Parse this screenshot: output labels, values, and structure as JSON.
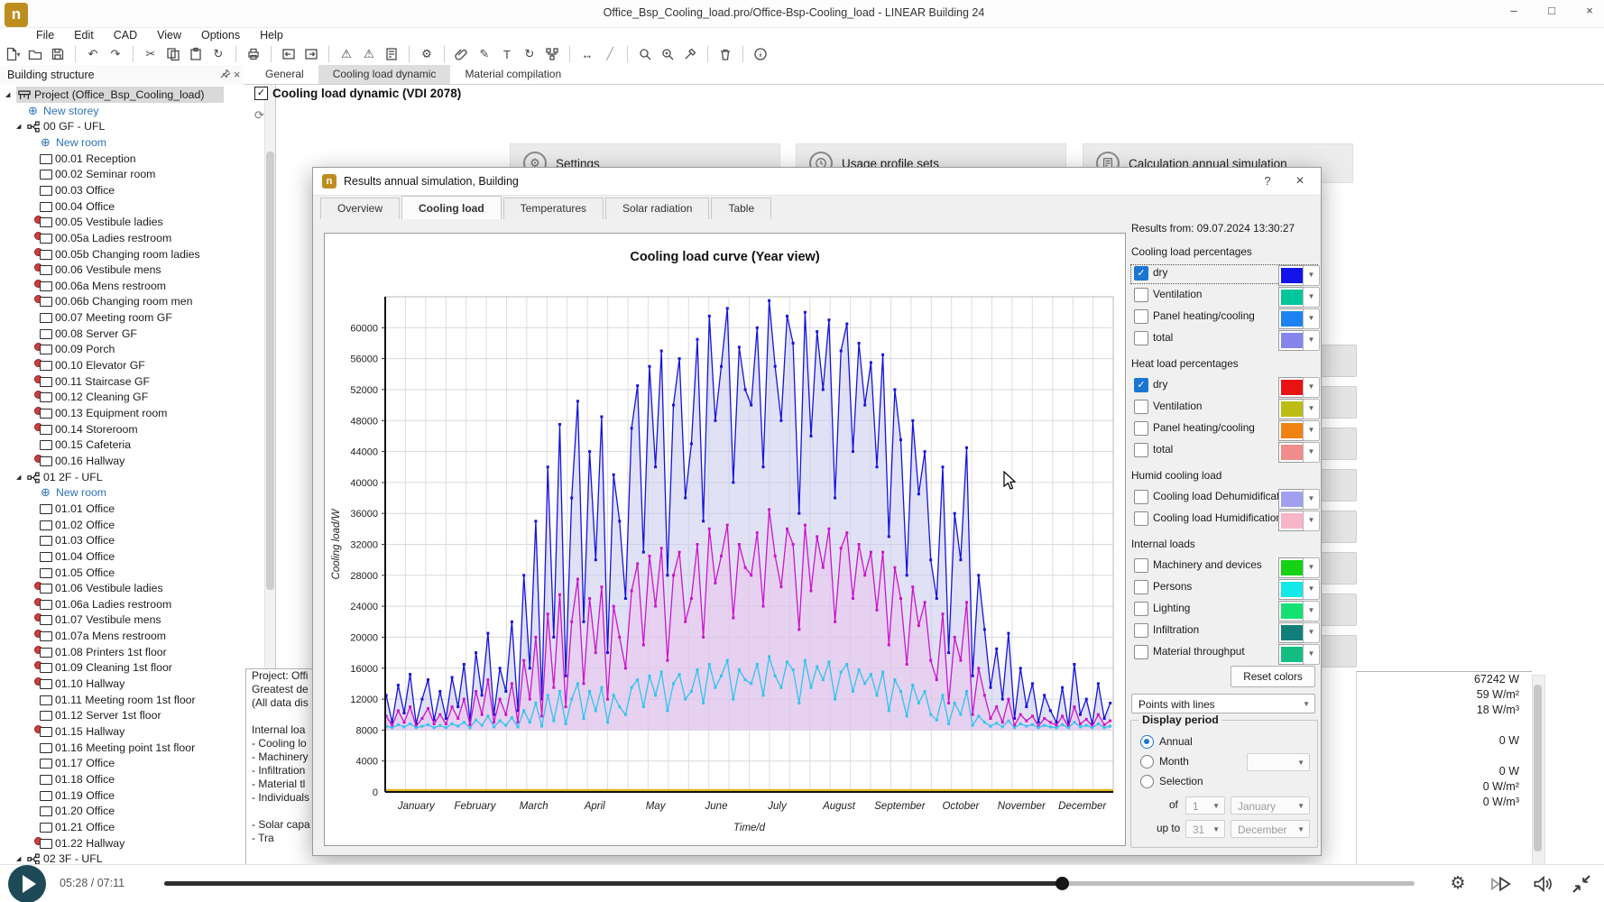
{
  "window": {
    "title": "Office_Bsp_Cooling_load.pro/Office-Bsp-Cooling_load - LINEAR Building 24",
    "controls": [
      "minimize",
      "maximize",
      "close"
    ],
    "logo_letter": "n"
  },
  "menu": [
    "File",
    "Edit",
    "CAD",
    "View",
    "Options",
    "Help"
  ],
  "toolbar_groups": [
    [
      "new-document",
      "open-project",
      "save"
    ],
    [
      "undo",
      "redo"
    ],
    [
      "cut",
      "copy",
      "paste",
      "find-replace"
    ],
    [
      "print"
    ],
    [
      "dock-left",
      "dock-right"
    ],
    [
      "warning-check",
      "warning-check-2",
      "calculation-check"
    ],
    [
      "settings-gear"
    ],
    [
      "attach-link",
      "edit-pencil",
      "text-tool",
      "refresh-sync",
      "structure-tree"
    ],
    [
      "measure-width",
      "measure-diagonal"
    ],
    [
      "zoom-search",
      "zoom-plus",
      "color-picker"
    ],
    [
      "delete-trash"
    ],
    [
      "info"
    ]
  ],
  "main_tabs": [
    {
      "label": "General",
      "active": false
    },
    {
      "label": "Cooling load dynamic",
      "active": true
    },
    {
      "label": "Material compilation",
      "active": false
    }
  ],
  "building_panel": {
    "title": "Building structure",
    "tree": [
      {
        "t": "Project (Office_Bsp_Cooling_load)",
        "k": "project"
      },
      {
        "t": "New storey",
        "k": "link1"
      },
      {
        "t": "00 GF - UFL",
        "k": "storey"
      },
      {
        "t": "New room",
        "k": "link2"
      },
      {
        "t": "00.01 Reception",
        "k": "room"
      },
      {
        "t": "00.02 Seminar room",
        "k": "room"
      },
      {
        "t": "00.03 Office",
        "k": "room"
      },
      {
        "t": "00.04 Office",
        "k": "room"
      },
      {
        "t": "00.05 Vestibule ladies",
        "k": "roomb"
      },
      {
        "t": "00.05a Ladies restroom",
        "k": "roomb"
      },
      {
        "t": "00.05b Changing room ladies",
        "k": "roomb"
      },
      {
        "t": "00.06 Vestibule mens",
        "k": "roomb"
      },
      {
        "t": "00.06a Mens restroom",
        "k": "roomb"
      },
      {
        "t": "00.06b Changing room men",
        "k": "roomb"
      },
      {
        "t": "00.07 Meeting room GF",
        "k": "room"
      },
      {
        "t": "00.08 Server GF",
        "k": "room"
      },
      {
        "t": "00.09 Porch",
        "k": "roomb"
      },
      {
        "t": "00.10 Elevator GF",
        "k": "roomb"
      },
      {
        "t": "00.11 Staircase GF",
        "k": "roomb"
      },
      {
        "t": "00.12 Cleaning GF",
        "k": "roomb"
      },
      {
        "t": "00.13 Equipment room",
        "k": "roomb"
      },
      {
        "t": "00.14 Storeroom",
        "k": "roomb"
      },
      {
        "t": "00.15 Cafeteria",
        "k": "room"
      },
      {
        "t": "00.16 Hallway",
        "k": "roomb"
      },
      {
        "t": "01 2F - UFL",
        "k": "storey"
      },
      {
        "t": "New room",
        "k": "link2"
      },
      {
        "t": "01.01 Office",
        "k": "room"
      },
      {
        "t": "01.02 Office",
        "k": "room"
      },
      {
        "t": "01.03 Office",
        "k": "room"
      },
      {
        "t": "01.04 Office",
        "k": "room"
      },
      {
        "t": "01.05 Office",
        "k": "room"
      },
      {
        "t": "01.06 Vestibule ladies",
        "k": "roomb"
      },
      {
        "t": "01.06a Ladies restroom",
        "k": "roomb"
      },
      {
        "t": "01.07 Vestibule mens",
        "k": "roomb"
      },
      {
        "t": "01.07a Mens restroom",
        "k": "roomb"
      },
      {
        "t": "01.08 Printers 1st floor",
        "k": "roomb"
      },
      {
        "t": "01.09 Cleaning 1st floor",
        "k": "roomb"
      },
      {
        "t": "01.10 Hallway",
        "k": "roomb"
      },
      {
        "t": "01.11 Meeting room 1st floor",
        "k": "room"
      },
      {
        "t": "01.12 Server 1st floor",
        "k": "room"
      },
      {
        "t": "01.15 Hallway",
        "k": "roomb"
      },
      {
        "t": "01.16 Meeting point 1st floor",
        "k": "room"
      },
      {
        "t": "01.17 Office",
        "k": "room"
      },
      {
        "t": "01.18 Office",
        "k": "room"
      },
      {
        "t": "01.19 Office",
        "k": "room"
      },
      {
        "t": "01.20 Office",
        "k": "room"
      },
      {
        "t": "01.21 Office",
        "k": "room"
      },
      {
        "t": "01.22 Hallway",
        "k": "roomb"
      },
      {
        "t": "02 3F - UFL",
        "k": "storey"
      }
    ]
  },
  "content": {
    "header_label": "Cooling load dynamic (VDI 2078)",
    "header_checked": true,
    "cards": [
      {
        "label": "Settings",
        "icon": "gear"
      },
      {
        "label": "Usage profile sets",
        "icon": "clock"
      },
      {
        "label": "Calculation annual simulation",
        "icon": "calc"
      }
    ],
    "left_fragment_lines": [
      "Project: Offi",
      "Greatest de",
      "(All data dis",
      "",
      "Internal loa",
      "- Cooling lo",
      "- Machinery",
      "- Infiltration",
      "- Material tl",
      "- Individuals",
      "",
      "- Solar capa",
      "- Tra"
    ],
    "right_values_lines": [
      "67242 W",
      "59 W/m²",
      "18 W/m³",
      "",
      "0 W",
      "",
      "0 W",
      "0 W/m²",
      "0 W/m³"
    ]
  },
  "dialog": {
    "title": "Results annual simulation, Building",
    "buttons": {
      "help": "?",
      "close": "×"
    },
    "tabs": [
      {
        "label": "Overview",
        "active": false
      },
      {
        "label": "Cooling load",
        "active": true
      },
      {
        "label": "Temperatures",
        "active": false
      },
      {
        "label": "Solar radiation",
        "active": false
      },
      {
        "label": "Table",
        "active": false
      }
    ],
    "results_from": "Results from: 09.07.2024 13:30:27",
    "legend_groups": [
      {
        "title": "Cooling load percentages",
        "items": [
          {
            "label": "dry",
            "checked": true,
            "focused": true,
            "color": "#1414e8"
          },
          {
            "label": "Ventilation",
            "checked": false,
            "color": "#00c79b"
          },
          {
            "label": "Panel heating/cooling",
            "checked": false,
            "color": "#1e82f0"
          },
          {
            "label": "total",
            "checked": false,
            "color": "#8585ec"
          }
        ]
      },
      {
        "title": "Heat load percentages",
        "items": [
          {
            "label": "dry",
            "checked": true,
            "color": "#e81414"
          },
          {
            "label": "Ventilation",
            "checked": false,
            "color": "#bcbc14"
          },
          {
            "label": "Panel heating/cooling",
            "checked": false,
            "color": "#f08214"
          },
          {
            "label": "total",
            "checked": false,
            "color": "#f08c8c"
          }
        ]
      },
      {
        "title": "Humid cooling load",
        "items": [
          {
            "label": "Cooling load Dehumidification",
            "checked": false,
            "color": "#a0a0ee"
          },
          {
            "label": "Cooling load Humidification",
            "checked": false,
            "color": "#f8b4c8"
          }
        ]
      },
      {
        "title": "Internal loads",
        "items": [
          {
            "label": "Machinery and devices",
            "checked": false,
            "color": "#14d214"
          },
          {
            "label": "Persons",
            "checked": false,
            "color": "#14e8e8"
          },
          {
            "label": "Lighting",
            "checked": false,
            "color": "#14e173"
          },
          {
            "label": "Infiltration",
            "checked": false,
            "color": "#137f7b"
          },
          {
            "label": "Material throughput",
            "checked": false,
            "color": "#14be82"
          }
        ]
      }
    ],
    "reset_label": "Reset colors",
    "style_value": "Points with lines",
    "display": {
      "title": "Display period",
      "annual": "Annual",
      "month": "Month",
      "selection": "Selection",
      "selected": "Annual",
      "of_label": "of",
      "of_day": "1",
      "of_month": "January",
      "upto_label": "up to",
      "upto_day": "31",
      "upto_month": "December"
    }
  },
  "chart_data": {
    "type": "line",
    "title": "Cooling load curve (Year view)",
    "xlabel": "Time/d",
    "ylabel": "Cooling load/W",
    "ylim": [
      0,
      64000
    ],
    "ytick_step": 4000,
    "grid": true,
    "legend": "none",
    "categories": [
      "January",
      "February",
      "March",
      "April",
      "May",
      "June",
      "July",
      "August",
      "September",
      "October",
      "November",
      "December"
    ],
    "month_day_bounds": [
      0,
      31,
      59,
      90,
      120,
      151,
      181,
      212,
      243,
      273,
      304,
      334,
      365
    ],
    "x_start": 1,
    "x_step": 3,
    "fill_baseline": 8000,
    "series": [
      {
        "name": "cooling-load-dry",
        "color": "#1414dc",
        "fill": "rgba(200,200,238,0.55)",
        "values": [
          12500,
          9000,
          13800,
          10200,
          15200,
          8800,
          12000,
          14500,
          9300,
          13000,
          9500,
          14800,
          11000,
          16500,
          9200,
          18000,
          12500,
          20500,
          10000,
          16000,
          13000,
          22000,
          10500,
          28000,
          16000,
          35000,
          12000,
          42000,
          20000,
          47500,
          15000,
          38000,
          50500,
          22000,
          44000,
          30000,
          48500,
          18000,
          41000,
          35000,
          25000,
          47000,
          52500,
          31000,
          55000,
          42000,
          57000,
          28000,
          50000,
          56000,
          38000,
          45000,
          58500,
          35000,
          61500,
          48000,
          55000,
          62500,
          40000,
          57500,
          52000,
          50000,
          60000,
          42000,
          63500,
          55000,
          48000,
          61500,
          58000,
          36000,
          62000,
          46000,
          59500,
          52000,
          61000,
          38000,
          57000,
          60500,
          44000,
          58000,
          50000,
          55500,
          42000,
          56500,
          33000,
          52000,
          45500,
          28000,
          48000,
          38500,
          44000,
          30000,
          25000,
          42000,
          18000,
          36000,
          30000,
          44500,
          15000,
          28000,
          21000,
          13500,
          18500,
          12000,
          20500,
          9500,
          16000,
          11000,
          14000,
          9000,
          12500,
          10500,
          9000,
          13500,
          8500,
          16500,
          10000,
          12000,
          8800,
          14000,
          9500,
          11500
        ]
      },
      {
        "name": "cooling-load-magenta",
        "color": "#cc14cc",
        "fill": "rgba(238,190,232,0.45)",
        "values": [
          9800,
          8600,
          10500,
          9000,
          11000,
          8500,
          9500,
          10800,
          8800,
          10000,
          8800,
          11000,
          9500,
          12000,
          8700,
          13000,
          10000,
          14500,
          9000,
          12000,
          10000,
          14000,
          9000,
          17000,
          12000,
          20000,
          9800,
          23000,
          13500,
          25500,
          11000,
          22000,
          27500,
          14000,
          25000,
          18000,
          26500,
          12000,
          24000,
          20000,
          16000,
          26000,
          29500,
          19000,
          30500,
          24000,
          31500,
          17000,
          28000,
          31000,
          22000,
          25000,
          32000,
          20000,
          34000,
          27000,
          30500,
          34500,
          22500,
          32000,
          29000,
          28000,
          33500,
          24000,
          36500,
          30500,
          26500,
          34000,
          32000,
          21000,
          34500,
          26000,
          33000,
          29000,
          34000,
          22000,
          31500,
          33500,
          25000,
          32000,
          28000,
          31000,
          23500,
          31000,
          19000,
          29000,
          25000,
          16500,
          26500,
          21500,
          24500,
          17000,
          14500,
          23000,
          11500,
          20000,
          17000,
          24500,
          10000,
          16000,
          12500,
          9500,
          11000,
          9000,
          12000,
          8600,
          10000,
          9200,
          9800,
          8500,
          9500,
          9000,
          8600,
          9800,
          8400,
          11000,
          8800,
          9400,
          8500,
          10000,
          8700,
          9200
        ]
      },
      {
        "name": "internal-loads-cyan",
        "color": "#30c4f0",
        "fill": null,
        "values": [
          8500,
          8300,
          8700,
          8400,
          8800,
          8300,
          8500,
          8700,
          8300,
          8600,
          8300,
          8800,
          8500,
          9000,
          8300,
          9300,
          8600,
          9800,
          8400,
          9200,
          8600,
          9600,
          8400,
          10500,
          9000,
          11500,
          8500,
          12500,
          9200,
          13000,
          8800,
          12000,
          14000,
          9500,
          13000,
          10500,
          13500,
          9000,
          12500,
          11000,
          10000,
          13500,
          14500,
          11000,
          15000,
          12500,
          15500,
          10500,
          14000,
          15200,
          12000,
          13000,
          15800,
          11500,
          16500,
          13500,
          15000,
          17000,
          12000,
          15800,
          14500,
          14000,
          16500,
          12500,
          17500,
          15000,
          13500,
          16800,
          15800,
          11500,
          17000,
          13500,
          16200,
          14500,
          16800,
          12000,
          15500,
          16500,
          13000,
          15800,
          14000,
          15200,
          12500,
          15500,
          10500,
          14500,
          13000,
          9800,
          13800,
          11500,
          13000,
          10000,
          9300,
          12500,
          8800,
          11500,
          10000,
          13000,
          8600,
          9800,
          9000,
          8500,
          8900,
          8400,
          9200,
          8300,
          8800,
          8500,
          8700,
          8300,
          8600,
          8400,
          8300,
          8700,
          8300,
          9000,
          8400,
          8600,
          8300,
          8800,
          8300,
          8500
        ]
      }
    ],
    "baseline_series": {
      "name": "zero-baseline",
      "color": "#e2b820",
      "value": 0
    }
  },
  "player": {
    "time": "05:28 / 07:11",
    "progress": 0.718,
    "icons": [
      "settings-gear",
      "playback-speed",
      "volume",
      "collapse"
    ]
  }
}
